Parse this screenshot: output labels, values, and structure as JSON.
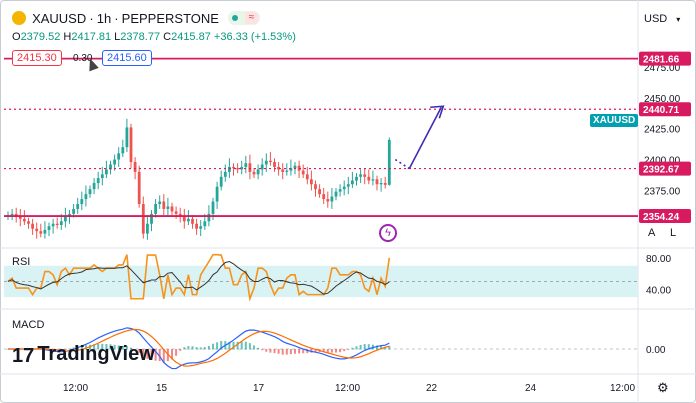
{
  "symbol": {
    "name": "XAUUSD",
    "sep1": "·",
    "interval": "1h",
    "sep2": "·",
    "broker": "PEPPERSTONE"
  },
  "ohlc": {
    "o_label": "O",
    "o": "2379.52",
    "h_label": "H",
    "h": "2417.81",
    "l_label": "L",
    "l": "2378.77",
    "c_label": "C",
    "c": "2415.87",
    "change": "+36.33 (+1.53%)"
  },
  "quote": {
    "sell": "2415.30",
    "spread": "0.30",
    "buy": "2415.60"
  },
  "currency_button": "USD",
  "scale_buttons": {
    "auto": "A",
    "log": "L"
  },
  "panes": {
    "rsi_title": "RSI",
    "macd_title": "MACD"
  },
  "branding": {
    "logo_text": "TradingView"
  },
  "symbol_tag": "XAUUSD",
  "colors": {
    "accent_red": "#d81b60",
    "bull": "#26a69a",
    "bear": "#ef5350",
    "rsi_line": "#f7931a",
    "rsi_ma": "#333333",
    "rsi_band": "#d9f3f5",
    "macd_line": "#2962ff",
    "signal_line": "#ff6d00",
    "arrow": "#3f2bb5",
    "lightning": "#9c27b0"
  },
  "chart_data": [
    {
      "type": "candlestick",
      "x_ticks": [
        "12:00",
        "15",
        "17",
        "12:00",
        "22",
        "24",
        "12:00"
      ],
      "y_ticks": [
        2375.0,
        2400.0,
        2425.0,
        2450.0,
        2475.0
      ],
      "ylim": [
        2330,
        2500
      ],
      "last_candle": {
        "open": 2379.52,
        "high": 2417.81,
        "low": 2378.77,
        "close": 2415.87
      },
      "approx_closes": [
        2355,
        2356,
        2354,
        2352,
        2350,
        2348,
        2344,
        2342,
        2340,
        2343,
        2346,
        2348,
        2347,
        2350,
        2354,
        2356,
        2360,
        2364,
        2368,
        2372,
        2376,
        2381,
        2385,
        2388,
        2392,
        2396,
        2400,
        2405,
        2410,
        2426,
        2398,
        2390,
        2364,
        2340,
        2348,
        2356,
        2364,
        2366,
        2360,
        2362,
        2358,
        2356,
        2354,
        2350,
        2352,
        2348,
        2344,
        2346,
        2350,
        2356,
        2366,
        2378,
        2386,
        2390,
        2394,
        2393,
        2392,
        2394,
        2397,
        2390,
        2388,
        2392,
        2396,
        2399,
        2398,
        2394,
        2392,
        2390,
        2391,
        2393,
        2395,
        2391,
        2388,
        2384,
        2380,
        2376,
        2372,
        2368,
        2366,
        2370,
        2374,
        2376,
        2378,
        2380,
        2383,
        2386,
        2388,
        2386,
        2383,
        2384,
        2380,
        2381,
        2379.52,
        2415.87
      ],
      "horizontal_levels": [
        {
          "value": 2481.66,
          "label": "2481.66",
          "style": "solid"
        },
        {
          "value": 2440.71,
          "label": "2440.71",
          "style": "dotted"
        },
        {
          "value": 2392.67,
          "label": "2392.67",
          "style": "dotted"
        },
        {
          "value": 2354.24,
          "label": "2354.24",
          "style": "solid"
        }
      ],
      "projection": {
        "from": 2392.67,
        "to": 2440.71
      }
    },
    {
      "type": "line",
      "title": "RSI",
      "y_ticks": [
        40.0,
        80.0
      ],
      "ylim": [
        20,
        90
      ],
      "band": [
        30,
        70
      ]
    },
    {
      "type": "bar",
      "title": "MACD",
      "y_ticks": [
        0.0
      ],
      "zero_line": 0.0
    }
  ]
}
